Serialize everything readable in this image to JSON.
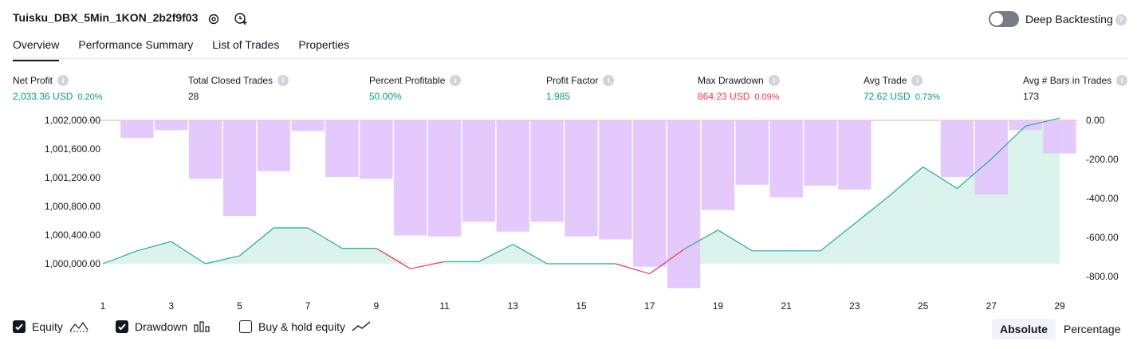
{
  "header": {
    "title": "Tuisku_DBX_5Min_1KON_2b2f9f03",
    "deep_backtesting_label": "Deep Backtesting",
    "deep_backtesting_on": false
  },
  "tabs": [
    {
      "label": "Overview",
      "active": true
    },
    {
      "label": "Performance Summary",
      "active": false
    },
    {
      "label": "List of Trades",
      "active": false
    },
    {
      "label": "Properties",
      "active": false
    }
  ],
  "stats": [
    {
      "label": "Net Profit",
      "value": "2,033.36 USD",
      "pct": "0.20%",
      "color": "green"
    },
    {
      "label": "Total Closed Trades",
      "value": "28",
      "pct": "",
      "color": "dark"
    },
    {
      "label": "Percent Profitable",
      "value": "50.00%",
      "pct": "",
      "color": "green"
    },
    {
      "label": "Profit Factor",
      "value": "1.985",
      "pct": "",
      "color": "green"
    },
    {
      "label": "Max Drawdown",
      "value": "864.23 USD",
      "pct": "0.09%",
      "color": "red"
    },
    {
      "label": "Avg Trade",
      "value": "72.62 USD",
      "pct": "0.73%",
      "color": "green"
    },
    {
      "label": "Avg # Bars in Trades",
      "value": "173",
      "pct": "",
      "color": "dark"
    }
  ],
  "colors": {
    "equity_line": "#22ab94",
    "equity_fill": "#d6f1ea",
    "drawdown_bar": "#e1c4fc",
    "equity_negative": "#f23645",
    "hold_line": "#2962ff"
  },
  "chart_data": {
    "type": "line",
    "x": [
      1,
      2,
      3,
      4,
      5,
      6,
      7,
      8,
      9,
      10,
      11,
      12,
      13,
      14,
      15,
      16,
      17,
      18,
      19,
      20,
      21,
      22,
      23,
      24,
      25,
      26,
      27,
      28,
      29
    ],
    "xticks": [
      "1",
      "3",
      "5",
      "7",
      "9",
      "11",
      "13",
      "15",
      "17",
      "19",
      "21",
      "23",
      "25",
      "27",
      "29"
    ],
    "left_yticks": [
      "1,002,000.00",
      "1,001,600.00",
      "1,001,200.00",
      "1,000,800.00",
      "1,000,400.00",
      "1,000,000.00"
    ],
    "right_yticks": [
      "0.00",
      "-200.00",
      "-400.00",
      "-600.00",
      "-800.00"
    ],
    "left_ylim": [
      999850,
      1002000
    ],
    "right_ylim": [
      -870,
      0
    ],
    "series": [
      {
        "name": "Equity",
        "axis": "left",
        "values": [
          1000000,
          1000180,
          1000310,
          1000000,
          1000110,
          1000500,
          1000500,
          1000215,
          1000215,
          999930,
          1000030,
          1000030,
          1000270,
          1000000,
          1000000,
          1000000,
          999860,
          1000200,
          1000470,
          1000180,
          1000180,
          1000180,
          1000560,
          1000940,
          1001350,
          1001050,
          1001460,
          1001920,
          1002030
        ]
      },
      {
        "name": "Drawdown",
        "axis": "right",
        "values": [
          0,
          -90,
          -50,
          -300,
          -490,
          -260,
          -55,
          -290,
          -300,
          -590,
          -595,
          -520,
          -570,
          -520,
          -595,
          -610,
          -750,
          -860,
          -460,
          -330,
          -395,
          -335,
          -355,
          0,
          0,
          -290,
          -380,
          -50,
          -170
        ]
      }
    ]
  },
  "legend": {
    "equity_label": "Equity",
    "equity_on": true,
    "drawdown_label": "Drawdown",
    "drawdown_on": true,
    "hold_label": "Buy & hold equity",
    "hold_on": false
  },
  "view_toggle": {
    "absolute_label": "Absolute",
    "percentage_label": "Percentage",
    "selected": "Absolute"
  }
}
